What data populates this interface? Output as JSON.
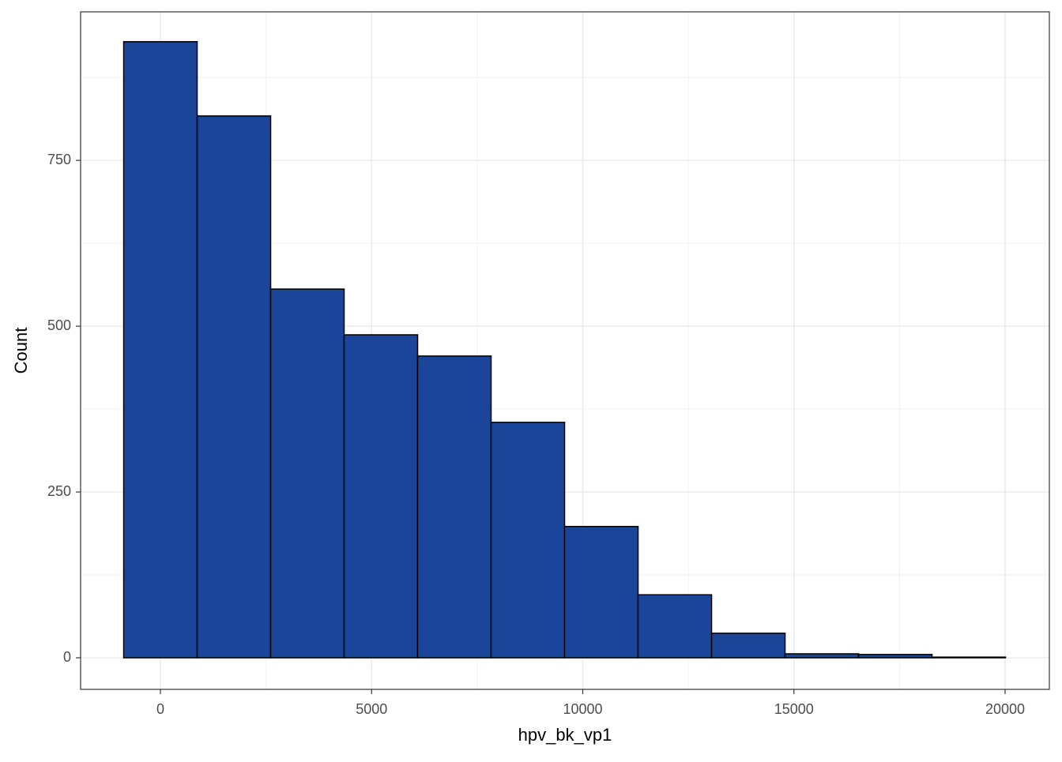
{
  "chart_data": {
    "type": "histogram",
    "x_label": "hpv_bk_vp1",
    "y_label": "Count",
    "bins": [
      -870,
      870,
      2610,
      4350,
      6090,
      7830,
      9570,
      11310,
      13050,
      14790,
      16530,
      18270,
      20010
    ],
    "counts": [
      929,
      817,
      556,
      487,
      455,
      355,
      198,
      95,
      37,
      6,
      5,
      1
    ],
    "color": "#1a4599",
    "edge_color": "#000000",
    "xlim": [
      -1890,
      21048
    ],
    "ylim": [
      -47.6,
      974
    ],
    "xticks": [
      0,
      5000,
      10000,
      15000,
      20000
    ],
    "yticks": [
      0,
      250,
      500,
      750
    ],
    "grid": true
  }
}
